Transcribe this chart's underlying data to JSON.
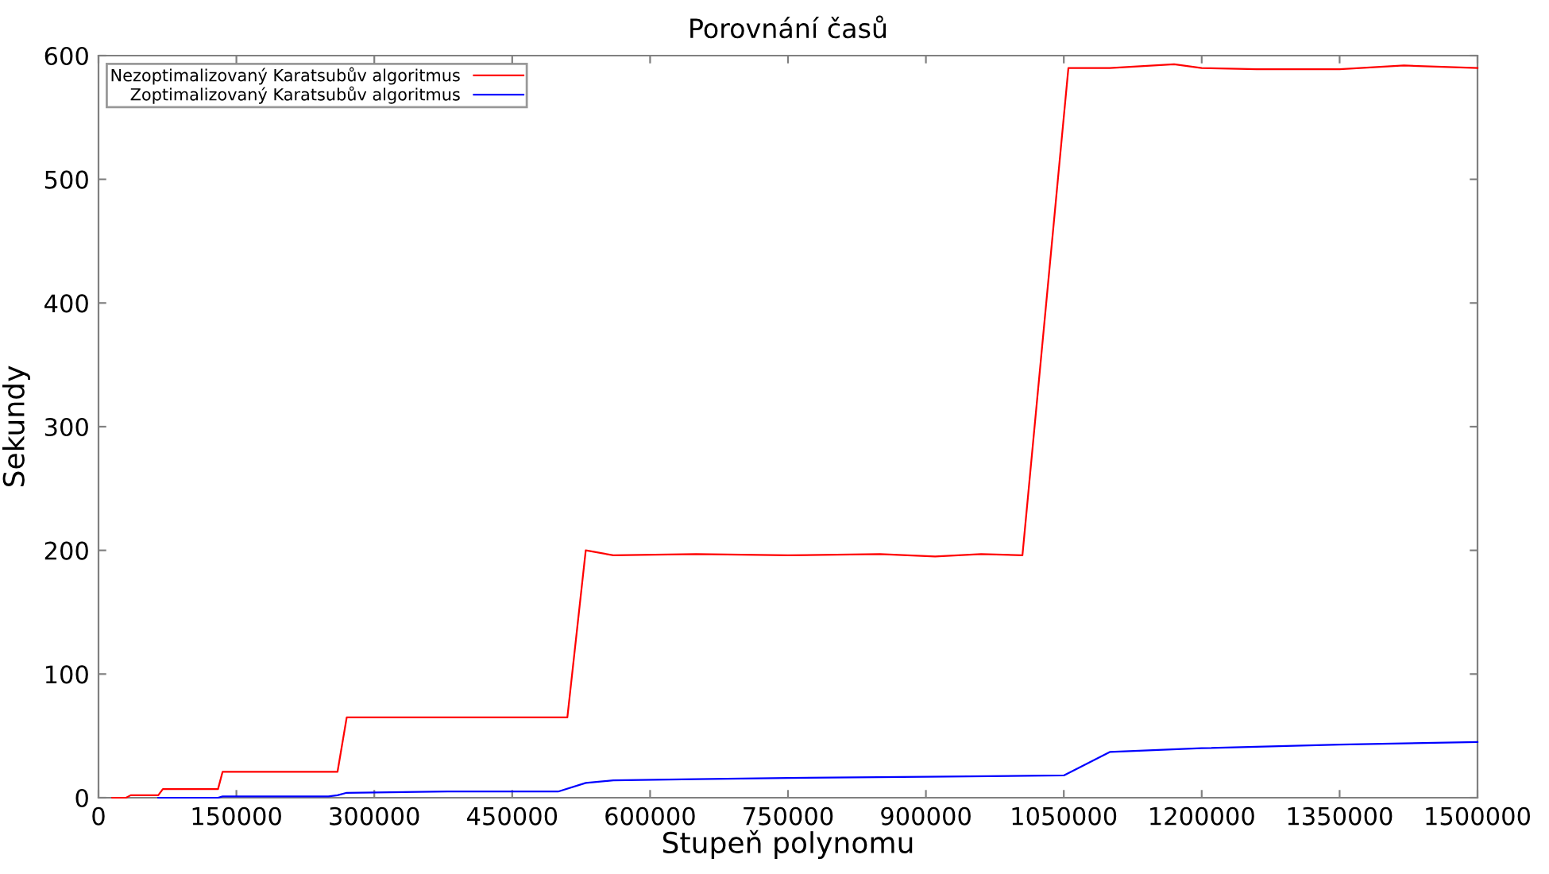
{
  "chart_data": {
    "type": "line",
    "title": "Porovnání časů",
    "xlabel": "Stupeň polynomu",
    "ylabel": "Sekundy",
    "xlim": [
      0,
      1500000
    ],
    "xticks": [
      0,
      150000,
      300000,
      450000,
      600000,
      750000,
      900000,
      1050000,
      1200000,
      1350000,
      1500000
    ],
    "ylim": [
      0,
      600
    ],
    "yticks": [
      0,
      100,
      200,
      300,
      400,
      500,
      600
    ],
    "grid": false,
    "legend": "top left",
    "marker": "none",
    "line_style": "solid",
    "series": [
      {
        "name": "Nezoptimalizovaný Karatsubův algoritmus",
        "color": "#ff0000",
        "x": [
          15000,
          30000,
          35000,
          65000,
          70000,
          130000,
          135000,
          260000,
          270000,
          510000,
          530000,
          560000,
          650000,
          750000,
          850000,
          910000,
          960000,
          1005000,
          1055000,
          1100000,
          1170000,
          1200000,
          1260000,
          1350000,
          1420000,
          1500000
        ],
        "values": [
          0,
          0,
          2,
          2,
          7,
          7,
          21,
          21,
          65,
          65,
          200,
          196,
          197,
          196,
          197,
          195,
          197,
          196,
          590,
          590,
          593,
          590,
          589,
          589,
          592,
          590
        ]
      },
      {
        "name": "Zoptimalizovaný Karatsubův algoritmus",
        "color": "#0000ff",
        "x": [
          65000,
          130000,
          135000,
          250000,
          260000,
          270000,
          380000,
          500000,
          530000,
          560000,
          650000,
          750000,
          900000,
          1050000,
          1100000,
          1200000,
          1350000,
          1500000
        ],
        "values": [
          0,
          0,
          1,
          1,
          2,
          4,
          5,
          5,
          12,
          14,
          15,
          16,
          17,
          18,
          37,
          40,
          43,
          45
        ]
      }
    ]
  }
}
